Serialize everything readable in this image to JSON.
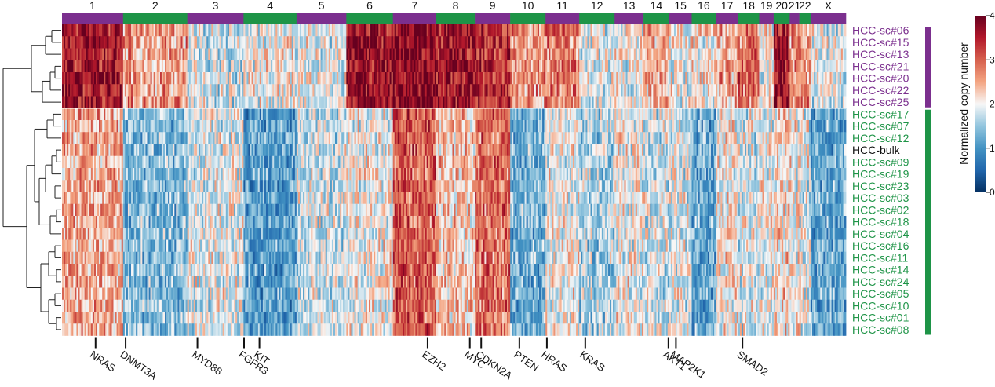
{
  "chart_data": {
    "type": "heatmap",
    "title": "",
    "value_label": "Normalized copy number",
    "value_range": [
      0,
      4
    ],
    "colorbar_ticks": [
      "0",
      "1",
      "2",
      "3",
      "4"
    ],
    "colors": {
      "low": "#053061",
      "mid": "#f7f7f7",
      "high": "#67001f",
      "group_a": "#7b2f8e",
      "group_b": "#1e9447",
      "bulk": "#111111"
    },
    "chromosomes": [
      {
        "label": "1",
        "group": "a",
        "bins": 38
      },
      {
        "label": "2",
        "group": "b",
        "bins": 40
      },
      {
        "label": "3",
        "group": "a",
        "bins": 35
      },
      {
        "label": "4",
        "group": "b",
        "bins": 33
      },
      {
        "label": "5",
        "group": "a",
        "bins": 31
      },
      {
        "label": "6",
        "group": "b",
        "bins": 29
      },
      {
        "label": "7",
        "group": "a",
        "bins": 27
      },
      {
        "label": "8",
        "group": "b",
        "bins": 24
      },
      {
        "label": "9",
        "group": "a",
        "bins": 22
      },
      {
        "label": "10",
        "group": "b",
        "bins": 22
      },
      {
        "label": "11",
        "group": "a",
        "bins": 21
      },
      {
        "label": "12",
        "group": "b",
        "bins": 22
      },
      {
        "label": "13",
        "group": "a",
        "bins": 18
      },
      {
        "label": "14",
        "group": "b",
        "bins": 16
      },
      {
        "label": "15",
        "group": "a",
        "bins": 14
      },
      {
        "label": "16",
        "group": "b",
        "bins": 15
      },
      {
        "label": "17",
        "group": "a",
        "bins": 14
      },
      {
        "label": "18",
        "group": "b",
        "bins": 13
      },
      {
        "label": "19",
        "group": "a",
        "bins": 9
      },
      {
        "label": "20",
        "group": "b",
        "bins": 10
      },
      {
        "label": "21",
        "group": "a",
        "bins": 6
      },
      {
        "label": "22",
        "group": "b",
        "bins": 7
      },
      {
        "label": "X",
        "group": "a",
        "bins": 22
      }
    ],
    "samples": [
      {
        "label": "HCC-sc#06",
        "group": "a"
      },
      {
        "label": "HCC-sc#15",
        "group": "a"
      },
      {
        "label": "HCC-sc#13",
        "group": "a"
      },
      {
        "label": "HCC-sc#21",
        "group": "a"
      },
      {
        "label": "HCC-sc#20",
        "group": "a"
      },
      {
        "label": "HCC-sc#22",
        "group": "a"
      },
      {
        "label": "HCC-sc#25",
        "group": "a"
      },
      {
        "label": "HCC-sc#17",
        "group": "b"
      },
      {
        "label": "HCC-sc#07",
        "group": "b"
      },
      {
        "label": "HCC-sc#12",
        "group": "b"
      },
      {
        "label": "HCC-bulk",
        "group": "bulk"
      },
      {
        "label": "HCC-sc#09",
        "group": "b"
      },
      {
        "label": "HCC-sc#19",
        "group": "b"
      },
      {
        "label": "HCC-sc#23",
        "group": "b"
      },
      {
        "label": "HCC-sc#03",
        "group": "b"
      },
      {
        "label": "HCC-sc#02",
        "group": "b"
      },
      {
        "label": "HCC-sc#18",
        "group": "b"
      },
      {
        "label": "HCC-sc#04",
        "group": "b"
      },
      {
        "label": "HCC-sc#16",
        "group": "b"
      },
      {
        "label": "HCC-sc#11",
        "group": "b"
      },
      {
        "label": "HCC-sc#14",
        "group": "b"
      },
      {
        "label": "HCC-sc#24",
        "group": "b"
      },
      {
        "label": "HCC-sc#05",
        "group": "b"
      },
      {
        "label": "HCC-sc#10",
        "group": "b"
      },
      {
        "label": "HCC-sc#01",
        "group": "b"
      },
      {
        "label": "HCC-sc#08",
        "group": "b"
      }
    ],
    "cluster_a_profile": [
      3.6,
      2.6,
      1.8,
      2.0,
      1.9,
      3.7,
      3.8,
      3.6,
      3.4,
      2.6,
      2.8,
      1.9,
      2.0,
      2.5,
      2.0,
      2.1,
      2.5,
      2.9,
      2.0,
      3.6,
      2.7,
      2.6,
      1.9
    ],
    "cluster_b_profile": [
      2.5,
      1.4,
      1.9,
      1.1,
      1.8,
      2.0,
      3.0,
      2.3,
      2.9,
      1.3,
      2.0,
      1.6,
      2.0,
      1.8,
      1.9,
      1.2,
      2.1,
      1.9,
      2.0,
      2.2,
      2.0,
      1.9,
      1.2
    ],
    "genes": [
      {
        "label": "NRAS",
        "chrom": "1",
        "pos": 0.55
      },
      {
        "label": "DNMT3A",
        "chrom": "2",
        "pos": 0.04
      },
      {
        "label": "MYD88",
        "chrom": "3",
        "pos": 0.18
      },
      {
        "label": "FGFR3",
        "chrom": "4",
        "pos": 0.01
      },
      {
        "label": "KIT",
        "chrom": "4",
        "pos": 0.3
      },
      {
        "label": "EZH2",
        "chrom": "7",
        "pos": 0.8
      },
      {
        "label": "MYC",
        "chrom": "8",
        "pos": 0.87
      },
      {
        "label": "CDKN2A",
        "chrom": "9",
        "pos": 0.18
      },
      {
        "label": "PTEN",
        "chrom": "10",
        "pos": 0.26
      },
      {
        "label": "HRAS",
        "chrom": "11",
        "pos": 0.04
      },
      {
        "label": "KRAS",
        "chrom": "12",
        "pos": 0.17
      },
      {
        "label": "AKT1",
        "chrom": "14",
        "pos": 0.97
      },
      {
        "label": "MAP2K1",
        "chrom": "15",
        "pos": 0.3
      },
      {
        "label": "SMAD2",
        "chrom": "18",
        "pos": 0.2
      }
    ]
  }
}
